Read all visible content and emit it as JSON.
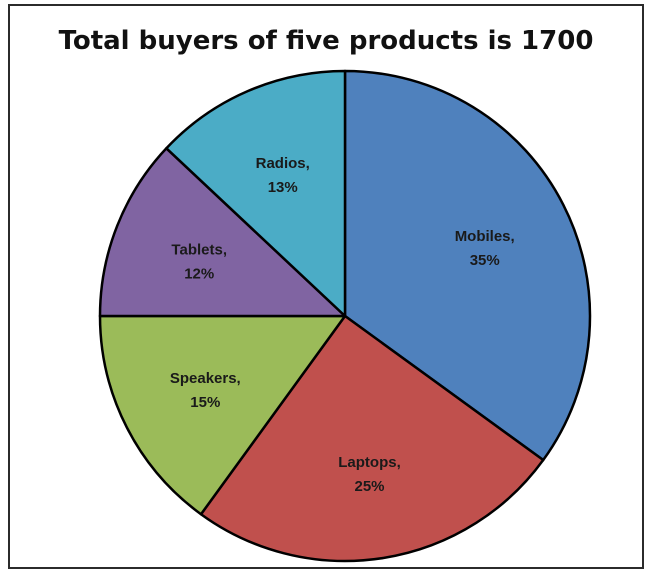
{
  "chart_data": {
    "type": "pie",
    "title": "Total buyers of five products is 1700",
    "series": [
      {
        "name": "Mobiles",
        "value": 35,
        "label": "Mobiles,",
        "pct_label": "35%",
        "color": "#4f81bd"
      },
      {
        "name": "Laptops",
        "value": 25,
        "label": "Laptops,",
        "pct_label": "25%",
        "color": "#c0504d"
      },
      {
        "name": "Speakers",
        "value": 15,
        "label": "Speakers,",
        "pct_label": "15%",
        "color": "#9bbb59"
      },
      {
        "name": "Tablets",
        "value": 12,
        "label": "Tablets,",
        "pct_label": "12%",
        "color": "#8064a2"
      },
      {
        "name": "Radios",
        "value": 13,
        "label": "Radios,",
        "pct_label": "13%",
        "color": "#4bacc6"
      }
    ],
    "start": "12 o'clock",
    "direction": "clockwise",
    "legend": "none"
  }
}
